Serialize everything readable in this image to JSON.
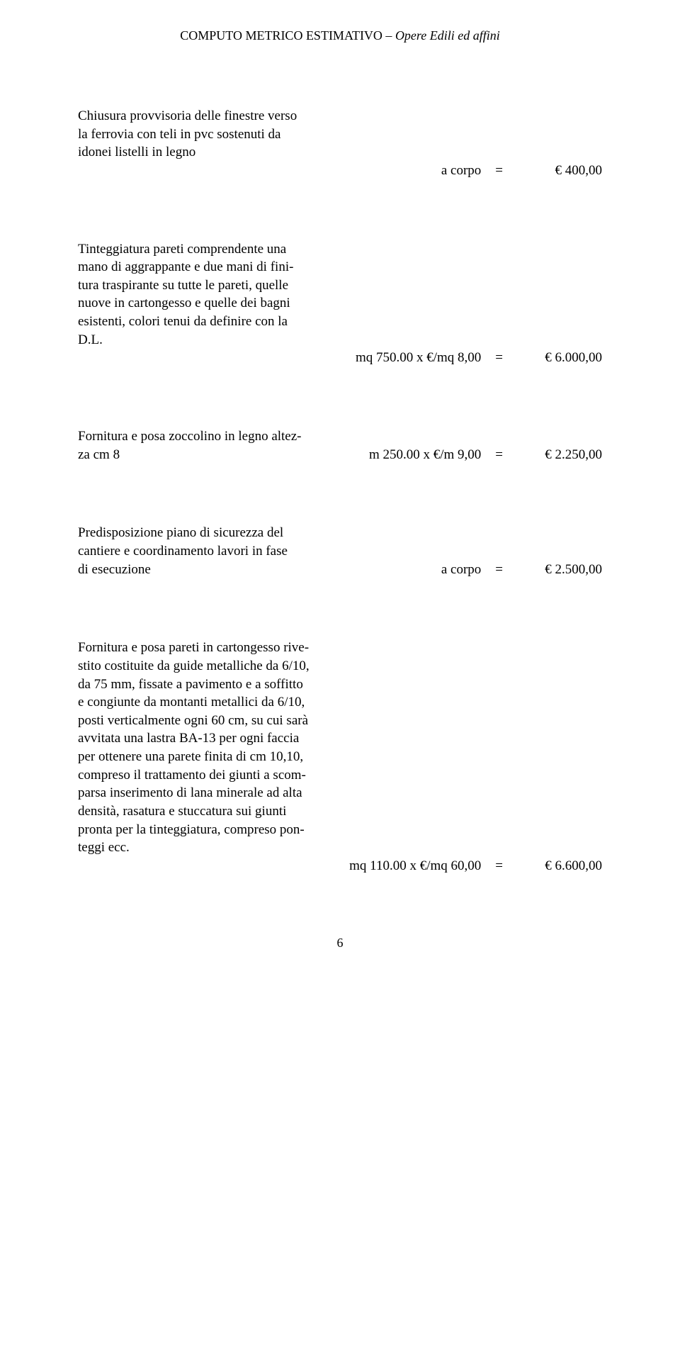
{
  "header": {
    "title_regular": "COMPUTO METRICO ESTIMATIVO – ",
    "title_italic": "Opere Edili ed affini"
  },
  "sections": {
    "s1": {
      "desc_l1": "Chiusura provvisoria delle finestre verso",
      "desc_l2": "la  ferrovia  con  teli  in  pvc sostenuti da",
      "desc_l3": "idonei listelli in legno",
      "unit": "a   corpo",
      "eq": "=",
      "amount": "€       400,00"
    },
    "s2": {
      "desc_l1": "Tinteggiatura pareti comprendente una",
      "desc_l2": "mano  di  aggrappante  e  due  mani di  fini-",
      "desc_l3": "tura  traspirante  su  tutte  le   pareti,  quelle",
      "desc_l4": "nuove  in  cartongesso e  quelle dei  bagni",
      "desc_l5": "esistenti, colori tenui da definire con la",
      "desc_l6": "D.L.",
      "unit": "mq  750.00  x €/mq  8,00",
      "eq": "=",
      "amount": "€     6.000,00"
    },
    "s3": {
      "desc_l1": "Fornitura e posa zoccolino in legno altez-",
      "desc_l2": "za  cm  8",
      "unit": "m   250.00  x  €/m   9,00",
      "eq": "=",
      "amount": "€     2.250,00"
    },
    "s4": {
      "desc_l1": "Predisposizione piano di sicurezza del",
      "desc_l2": "cantiere e coordinamento lavori in fase",
      "desc_l3": "di esecuzione",
      "unit": "a   corpo",
      "eq": "=",
      "amount": "€     2.500,00"
    },
    "s5": {
      "desc_l1": "Fornitura e posa pareti in cartongesso rive-",
      "desc_l2": "stito costituite da guide metalliche da 6/10,",
      "desc_l3": "da 75 mm, fissate a pavimento e a soffitto",
      "desc_l4": "e congiunte da montanti metallici da 6/10,",
      "desc_l5": "posti verticalmente ogni 60 cm, su cui sarà",
      "desc_l6": "avvitata una lastra BA-13 per ogni faccia",
      "desc_l7": "per ottenere una parete finita di cm 10,10,",
      "desc_l8": "compreso il trattamento dei giunti a scom-",
      "desc_l9": "parsa inserimento di lana minerale ad alta",
      "desc_l10": "densità, rasatura  e  stuccatura  sui  giunti",
      "desc_l11": "pronta per la tinteggiatura, compreso pon-",
      "desc_l12": "teggi  ecc.",
      "unit": "mq  110.00 x €/mq  60,00",
      "eq": "=",
      "amount": "€     6.600,00"
    }
  },
  "page_number": "6",
  "colors": {
    "background": "#ffffff",
    "text": "#000000"
  },
  "typography": {
    "body_font": "Times New Roman",
    "body_size_pt": 14,
    "header_size_pt": 13
  }
}
